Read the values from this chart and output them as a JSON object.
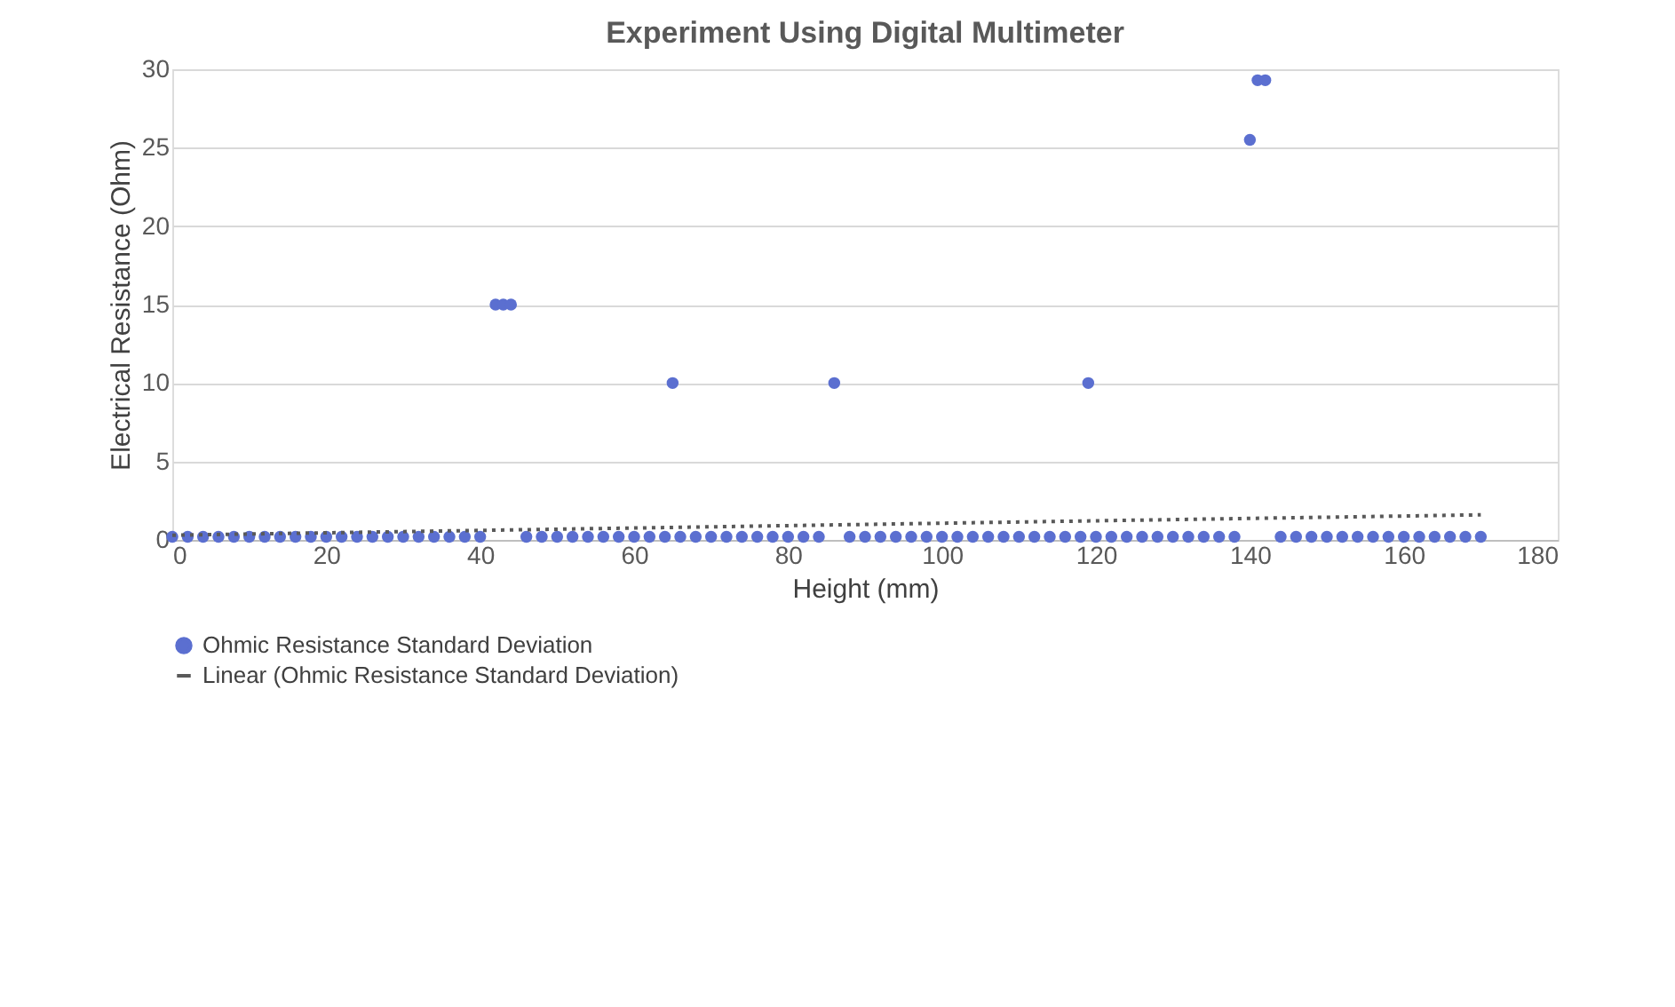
{
  "chart_data": {
    "type": "scatter",
    "title": "Experiment Using Digital Multimeter",
    "xlabel": "Height (mm)",
    "ylabel": "Electrical Resistance (Ohm)",
    "xlim": [
      0,
      180
    ],
    "xticks": [
      0,
      20,
      40,
      60,
      80,
      100,
      120,
      140,
      160,
      180
    ],
    "ylim": [
      0,
      30
    ],
    "yticks": [
      0,
      5,
      10,
      15,
      20,
      25,
      30
    ],
    "grid": "y",
    "legend": "bottom",
    "series": [
      {
        "name": "Ohmic Resistance Standard Deviation",
        "color": "#5b6fd0",
        "marker": "circle",
        "x": [
          0,
          2,
          4,
          6,
          8,
          10,
          12,
          14,
          16,
          18,
          20,
          22,
          24,
          26,
          28,
          30,
          32,
          34,
          36,
          38,
          40,
          42,
          43,
          44,
          46,
          48,
          50,
          52,
          54,
          56,
          58,
          60,
          62,
          64,
          65,
          66,
          68,
          70,
          72,
          74,
          76,
          78,
          80,
          82,
          84,
          86,
          88,
          90,
          92,
          94,
          96,
          98,
          100,
          102,
          104,
          106,
          108,
          110,
          112,
          114,
          116,
          118,
          119,
          120,
          122,
          124,
          126,
          128,
          130,
          132,
          134,
          136,
          138,
          140,
          141,
          142,
          144,
          146,
          148,
          150,
          152,
          154,
          156,
          158,
          160,
          162,
          164,
          166,
          168,
          170
        ],
        "values": [
          0.2,
          0.2,
          0.2,
          0.2,
          0.2,
          0.2,
          0.2,
          0.2,
          0.2,
          0.2,
          0.2,
          0.2,
          0.2,
          0.2,
          0.2,
          0.2,
          0.2,
          0.2,
          0.2,
          0.2,
          0.2,
          15,
          15,
          15,
          0.2,
          0.2,
          0.2,
          0.2,
          0.2,
          0.2,
          0.2,
          0.2,
          0.2,
          0.2,
          10,
          0.2,
          0.2,
          0.2,
          0.2,
          0.2,
          0.2,
          0.2,
          0.2,
          0.2,
          0.2,
          10,
          0.2,
          0.2,
          0.2,
          0.2,
          0.2,
          0.2,
          0.2,
          0.2,
          0.2,
          0.2,
          0.2,
          0.2,
          0.2,
          0.2,
          0.2,
          0.2,
          10,
          0.2,
          0.2,
          0.2,
          0.2,
          0.2,
          0.2,
          0.2,
          0.2,
          0.2,
          0.2,
          25.5,
          29.3,
          29.3,
          0.2,
          0.2,
          0.2,
          0.2,
          0.2,
          0.2,
          0.2,
          0.2,
          0.2,
          0.2,
          0.2,
          0.2,
          0.2,
          0.2
        ]
      },
      {
        "name": "Linear (Ohmic Resistance Standard Deviation)",
        "color": "#595959",
        "type": "line",
        "line_style": "dotted",
        "x": [
          0,
          170
        ],
        "values": [
          0.3,
          1.6
        ]
      }
    ]
  }
}
